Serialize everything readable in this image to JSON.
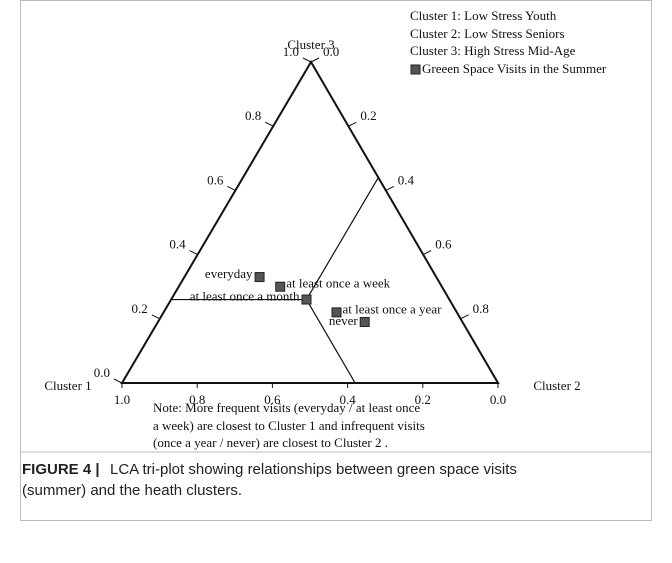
{
  "chart_data": {
    "type": "ternary",
    "axes": [
      "Cluster 1",
      "Cluster 2",
      "Cluster 3"
    ],
    "legend_text": [
      "Cluster 1: Low Stress Youth",
      "Cluster 2: Low Stress Seniors",
      "Cluster 3: High Stress Mid-Age"
    ],
    "series": [
      {
        "name": "Greeen Space Visits in the Summer",
        "color": "#555555",
        "labels": [
          "everyday",
          "at least once a week",
          "at least once a month",
          "at least once a year",
          "never"
        ],
        "cluster1": [
          0.47,
          0.43,
          0.38,
          0.32,
          0.26
        ],
        "cluster2": [
          0.2,
          0.27,
          0.36,
          0.46,
          0.55
        ],
        "cluster3": [
          0.33,
          0.3,
          0.26,
          0.22,
          0.19
        ]
      }
    ],
    "ticks_cluster1": [
      {
        "value": 1,
        "label": "1.0"
      },
      0.8,
      0.6,
      0.4,
      0.2,
      {
        "value": 0,
        "label": "0.0"
      }
    ],
    "ticks_cluster2": [
      {
        "value": 0,
        "label": "0.0"
      },
      0.2,
      0.4,
      0.6,
      0.8
    ],
    "ticks_cluster3": [
      {
        "value": 0,
        "label": "0.0"
      },
      0.2,
      0.4,
      0.6,
      0.8,
      {
        "value": 1,
        "label": "1.0"
      }
    ],
    "note": [
      "Note: More frequent visits (everyday / at least once",
      "a week) are closest to Cluster 1 and infrequent visits",
      "(once a year / never) are closest to Cluster 2 ."
    ]
  },
  "caption": {
    "label": "FIGURE 4 |",
    "text": "LCA tri-plot showing relationships between green space visits",
    "text2": "(summer) and the heath clusters."
  }
}
